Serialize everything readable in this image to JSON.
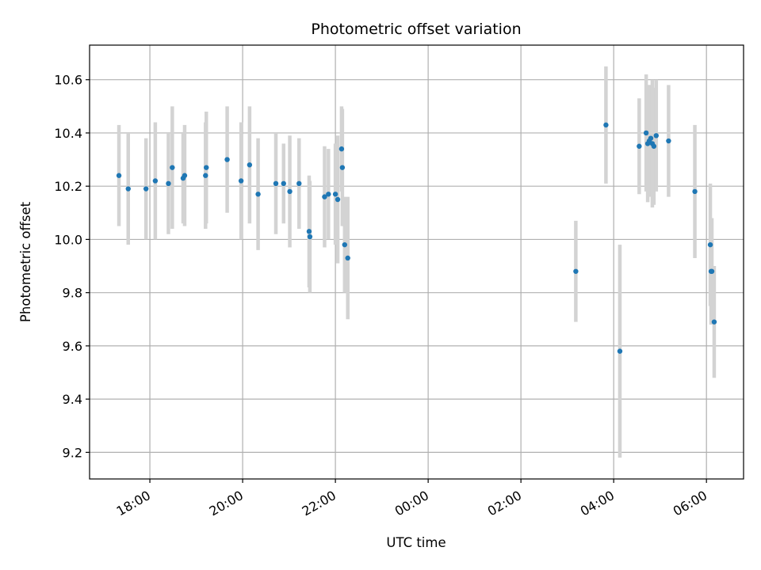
{
  "chart_data": {
    "type": "scatter",
    "title": "Photometric offset variation",
    "xlabel": "UTC time",
    "ylabel": "Photometric offset",
    "x_tick_labels": [
      "18:00",
      "20:00",
      "22:00",
      "00:00",
      "02:00",
      "04:00",
      "06:00"
    ],
    "y_tick_labels": [
      "9.2",
      "9.4",
      "9.6",
      "9.8",
      "10.0",
      "10.2",
      "10.4",
      "10.6"
    ],
    "xlim_hours": [
      16.7,
      30.8
    ],
    "ylim": [
      9.1,
      10.73
    ],
    "grid": true,
    "colors": {
      "point": "#1f77b4",
      "errorbar": "#d3d3d3",
      "grid": "#b0b0b0",
      "axes": "#000000"
    },
    "series": [
      {
        "x": [
          "17:20",
          "17:32",
          "17:55",
          "18:07",
          "18:24",
          "18:29",
          "18:43",
          "18:45",
          "19:12",
          "19:13",
          "19:40",
          "19:58",
          "20:09",
          "20:20",
          "20:43",
          "20:53",
          "21:01",
          "21:13",
          "21:26",
          "21:27",
          "21:46",
          "21:51",
          "22:00",
          "22:03",
          "22:08",
          "22:09",
          "22:12",
          "22:16",
          "03:11",
          "03:50",
          "04:08",
          "04:33",
          "04:42",
          "04:44",
          "04:46",
          "04:48",
          "04:50",
          "04:52",
          "04:55",
          "05:11",
          "05:45",
          "06:05",
          "06:06",
          "06:07",
          "06:10"
        ],
        "y": [
          10.24,
          10.19,
          10.19,
          10.22,
          10.21,
          10.27,
          10.23,
          10.24,
          10.24,
          10.27,
          10.3,
          10.22,
          10.28,
          10.17,
          10.21,
          10.21,
          10.18,
          10.21,
          10.03,
          10.01,
          10.16,
          10.17,
          10.17,
          10.15,
          10.34,
          10.27,
          9.98,
          9.93,
          9.88,
          10.43,
          9.58,
          10.35,
          10.4,
          10.36,
          10.37,
          10.38,
          10.36,
          10.35,
          10.39,
          10.37,
          10.18,
          9.98,
          9.88,
          9.88,
          9.69
        ],
        "yerr": [
          0.19,
          0.21,
          0.19,
          0.22,
          0.19,
          0.23,
          0.17,
          0.19,
          0.2,
          0.21,
          0.2,
          0.22,
          0.22,
          0.21,
          0.19,
          0.15,
          0.21,
          0.17,
          0.21,
          0.21,
          0.19,
          0.17,
          0.19,
          0.24,
          0.16,
          0.22,
          0.18,
          0.23,
          0.19,
          0.22,
          0.4,
          0.18,
          0.22,
          0.22,
          0.21,
          0.2,
          0.24,
          0.22,
          0.21,
          0.21,
          0.25,
          0.23,
          0.2,
          0.2,
          0.21
        ]
      }
    ]
  }
}
